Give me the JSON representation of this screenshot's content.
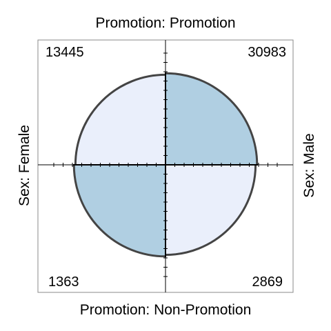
{
  "chart_data": {
    "type": "fourfold",
    "top_label": "Promotion: Promotion",
    "bottom_label": "Promotion: Non-Promotion",
    "left_label": "Sex: Female",
    "right_label": "Sex: Male",
    "cells": [
      {
        "row": "Promotion",
        "column": "Female",
        "quadrant": "top-left",
        "count": "13445"
      },
      {
        "row": "Promotion",
        "column": "Male",
        "quadrant": "top-right",
        "count": "30983"
      },
      {
        "row": "Non-Promotion",
        "column": "Female",
        "quadrant": "bottom-left",
        "count": "1363"
      },
      {
        "row": "Non-Promotion",
        "column": "Male",
        "quadrant": "bottom-right",
        "count": "2869"
      }
    ],
    "standardized_fractions": {
      "top-left": 0.95,
      "top-right": 0.982,
      "bottom-left": 0.982,
      "bottom-right": 0.95
    },
    "colors": {
      "shaded": "#b0cfe2",
      "light": "#eaeffb",
      "outline": "#444444",
      "axis": "#000000",
      "frame": "#888888"
    },
    "grid": false
  }
}
